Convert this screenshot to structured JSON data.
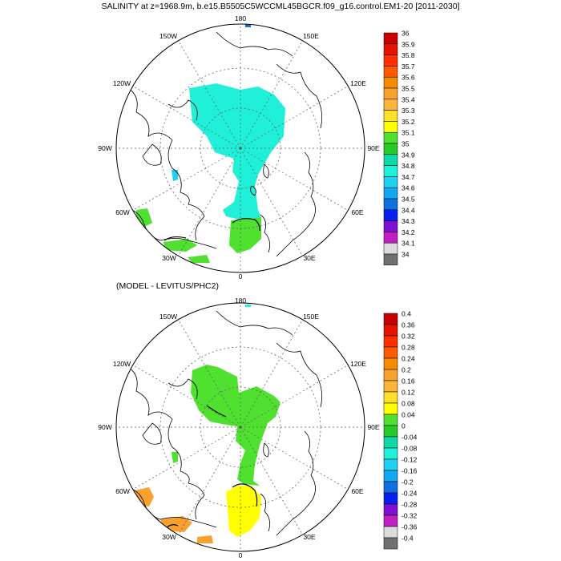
{
  "top_panel": {
    "title": "SALINITY at z=1968.9m, b.e15.B5505C5WCCML45BGCR.f09_g16.control.EM1-20 [2011-2030]",
    "lon_labels": [
      "180",
      "150E",
      "120E",
      "90E",
      "60E",
      "30E",
      "0",
      "30W",
      "60W",
      "90W",
      "120W",
      "150W"
    ],
    "colorbar": {
      "labels": [
        "36",
        "35.9",
        "35.8",
        "35.7",
        "35.6",
        "35.5",
        "35.4",
        "35.3",
        "35.2",
        "35.1",
        "35",
        "34.9",
        "34.8",
        "34.7",
        "34.6",
        "34.5",
        "34.4",
        "34.3",
        "34.2",
        "34.1",
        "34"
      ],
      "colors": [
        "#c80000",
        "#e41400",
        "#ff3000",
        "#ff5a00",
        "#f68b00",
        "#f8a030",
        "#fbb43c",
        "#fde028",
        "#ffff00",
        "#50e030",
        "#28c828",
        "#10d8a8",
        "#20f0d8",
        "#20d0f0",
        "#10a8f0",
        "#1070e0",
        "#0a20f0",
        "#8010d0",
        "#c020c0",
        "#dcdcdc",
        "#707070"
      ]
    }
  },
  "bottom_panel": {
    "title": "(MODEL - LEVITUS/PHC2)",
    "lon_labels": [
      "180",
      "150E",
      "120E",
      "90E",
      "60E",
      "30E",
      "0",
      "30W",
      "60W",
      "90W",
      "120W",
      "150W"
    ],
    "colorbar": {
      "labels": [
        "0.4",
        "0.36",
        "0.32",
        "0.28",
        "0.24",
        "0.2",
        "0.16",
        "0.12",
        "0.08",
        "0.04",
        "0",
        "-0.04",
        "-0.08",
        "-0.12",
        "-0.16",
        "-0.2",
        "-0.24",
        "-0.28",
        "-0.32",
        "-0.36",
        "-0.4"
      ],
      "colors": [
        "#c80000",
        "#e41400",
        "#ff3000",
        "#ff5a00",
        "#f68b00",
        "#f8a030",
        "#fbb43c",
        "#fde028",
        "#ffff00",
        "#50e030",
        "#28c828",
        "#10d8a8",
        "#20f0d8",
        "#20d0f0",
        "#10a8f0",
        "#1070e0",
        "#0a20f0",
        "#8010d0",
        "#c020c0",
        "#dcdcdc",
        "#707070"
      ]
    }
  },
  "fills": {
    "top_main": "#20f0d8",
    "top_atlantic": "#50e030",
    "top_small": "#20d0f0",
    "top_top": "#1070e0",
    "bottom_main": "#50e030",
    "bottom_atlantic": "#ffff00",
    "bottom_orange": "#f8a030",
    "bottom_top": "#20f0d8"
  }
}
